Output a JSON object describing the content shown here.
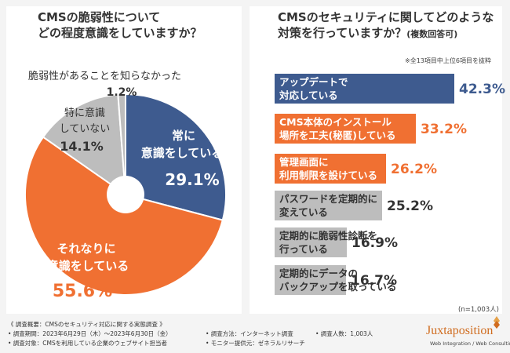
{
  "colors": {
    "blue": "#3e5b8f",
    "orange": "#f07032",
    "gray": "#bdbdbd",
    "dark": "#333333"
  },
  "left": {
    "title1": "CMSの脆弱性について",
    "title2": "どの程度意識をしていますか？"
  },
  "right": {
    "title1": "CMSのセキュリティに関してどのような",
    "title2": "対策を行っていますか？",
    "title2_sub": "(複数回答可)",
    "note": "※全13項目中上位6項目を抜粋",
    "n_label": "(n=1,003人)"
  },
  "chart_data": [
    {
      "type": "pie",
      "title": "CMSの脆弱性についてどの程度意識をしていますか？",
      "slices": [
        {
          "label1": "常に",
          "label2": "意識をしている",
          "label3": "",
          "value": 29.1,
          "value_text": "29.1%"
        },
        {
          "label1": "それなりに",
          "label2": "意識をしている",
          "label3": "",
          "value": 55.6,
          "value_text": "55.6%"
        },
        {
          "label1": "特に意識",
          "label2": "していない",
          "label3": "",
          "value": 14.1,
          "value_text": "14.1%"
        },
        {
          "label1": "脆弱性があることを知らなかった",
          "label2": "",
          "label3": "",
          "value": 1.2,
          "value_text": "1.2%"
        }
      ]
    },
    {
      "type": "bar",
      "title": "CMSのセキュリティに関してどのような対策を行っていますか？(複数回答可)",
      "xlim": [
        0,
        45
      ],
      "items": [
        {
          "line1": "アップデートで",
          "line2": "対応している",
          "value": 42.3,
          "value_text": "42.3%"
        },
        {
          "line1": "CMS本体のインストール",
          "line2": "場所を工夫(秘匿)している",
          "value": 33.2,
          "value_text": "33.2%"
        },
        {
          "line1": "管理画面に",
          "line2": "利用制限を設けている",
          "value": 26.2,
          "value_text": "26.2%"
        },
        {
          "line1": "パスワードを定期的に",
          "line2": "変えている",
          "value": 25.2,
          "value_text": "25.2%"
        },
        {
          "line1": "定期的に脆弱性診断を",
          "line2": "行っている",
          "value": 16.9,
          "value_text": "16.9%"
        },
        {
          "line1": "定期的にデータの",
          "line2": "バックアップを取っている",
          "value": 16.7,
          "value_text": "16.7%"
        }
      ]
    }
  ],
  "footer": {
    "l1": "《 調査概要：CMSのセキュリティ対応に関する実態調査 》",
    "l2": "• 調査期間：2023年6月29日（木）〜2023年6月30日（金）",
    "l3": "• 調査対象：CMSを利用している企業のウェブサイト担当者",
    "m1": "• 調査方法：インターネット調査",
    "m2": "• モニター提供元：ゼネラルリサーチ",
    "r1": "• 調査人数：1,003人"
  },
  "logo": {
    "name": "Juxtaposition",
    "tagline": "Web Integration / Web Consulting"
  }
}
